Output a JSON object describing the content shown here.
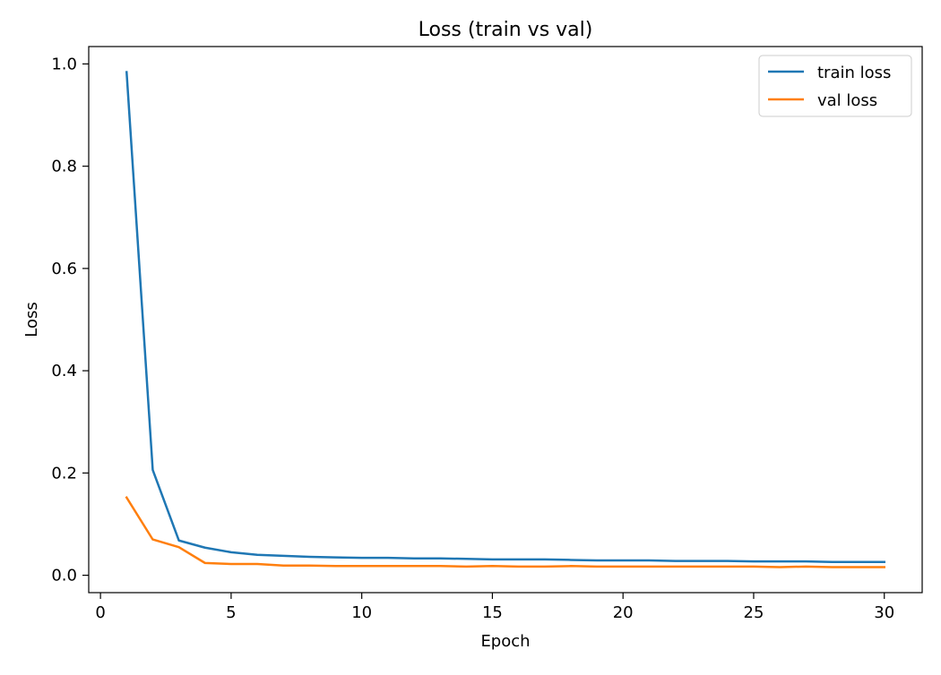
{
  "chart_data": {
    "type": "line",
    "title": "Loss (train vs val)",
    "xlabel": "Epoch",
    "ylabel": "Loss",
    "xlim": [
      -0.45,
      31.45
    ],
    "ylim": [
      -0.034,
      1.034
    ],
    "xticks": [
      0,
      5,
      10,
      15,
      20,
      25,
      30
    ],
    "yticks": [
      0.0,
      0.2,
      0.4,
      0.6,
      0.8,
      1.0
    ],
    "ytick_labels": [
      "0.0",
      "0.2",
      "0.4",
      "0.6",
      "0.8",
      "1.0"
    ],
    "grid": false,
    "legend_position": "top-right",
    "x": [
      1,
      2,
      3,
      4,
      5,
      6,
      7,
      8,
      9,
      10,
      11,
      12,
      13,
      14,
      15,
      16,
      17,
      18,
      19,
      20,
      21,
      22,
      23,
      24,
      25,
      26,
      27,
      28,
      29,
      30
    ],
    "series": [
      {
        "name": "train loss",
        "color": "#1f77b4",
        "values": [
          0.984,
          0.206,
          0.068,
          0.054,
          0.045,
          0.04,
          0.038,
          0.036,
          0.035,
          0.034,
          0.034,
          0.033,
          0.033,
          0.032,
          0.031,
          0.031,
          0.031,
          0.03,
          0.029,
          0.029,
          0.029,
          0.028,
          0.028,
          0.028,
          0.027,
          0.027,
          0.027,
          0.026,
          0.026,
          0.026
        ]
      },
      {
        "name": "val loss",
        "color": "#ff7f0e",
        "values": [
          0.152,
          0.07,
          0.055,
          0.024,
          0.022,
          0.022,
          0.019,
          0.019,
          0.018,
          0.018,
          0.018,
          0.018,
          0.018,
          0.017,
          0.018,
          0.017,
          0.017,
          0.018,
          0.017,
          0.017,
          0.017,
          0.017,
          0.017,
          0.017,
          0.017,
          0.016,
          0.017,
          0.016,
          0.016,
          0.016
        ]
      }
    ]
  }
}
